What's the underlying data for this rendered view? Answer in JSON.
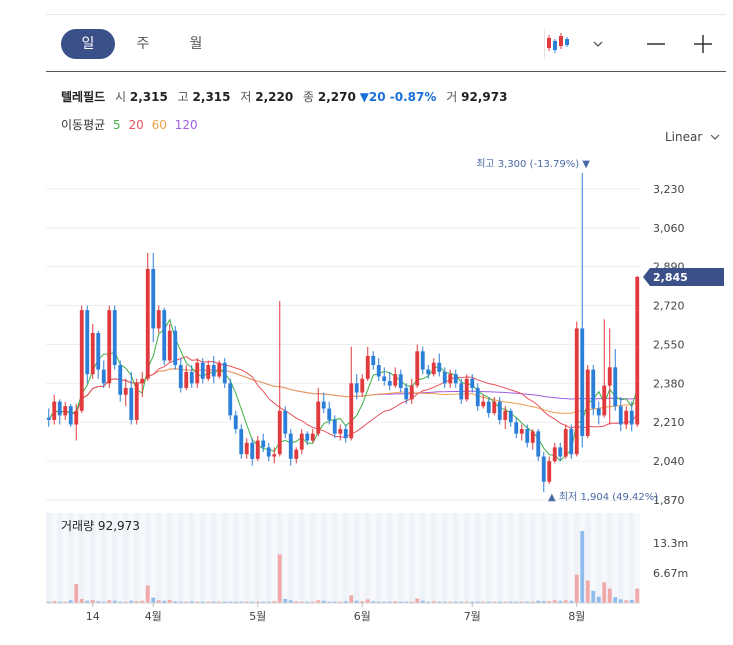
{
  "header": {
    "tabs": [
      {
        "label": "일",
        "active": true
      },
      {
        "label": "주",
        "active": false
      },
      {
        "label": "월",
        "active": false
      }
    ],
    "chart_type_icon": "candlestick-icon",
    "chart_type_dropdown_icon": "chevron-down-icon",
    "zoom_out_icon": "minus-icon",
    "zoom_in_icon": "plus-icon"
  },
  "stock": {
    "name": "텔레필드",
    "open_label": "시",
    "open": "2,315",
    "high_label": "고",
    "high": "2,315",
    "low_label": "저",
    "low": "2,220",
    "close_label": "종",
    "close": "2,270",
    "change": "▼20 -0.87%",
    "volume_label": "거",
    "volume": "92,973"
  },
  "ma": {
    "label": "이동평균",
    "periods": [
      {
        "label": "5",
        "color": "#3cb043"
      },
      {
        "label": "20",
        "color": "#e8545e"
      },
      {
        "label": "60",
        "color": "#f0a050"
      },
      {
        "label": "120",
        "color": "#a05ee0"
      }
    ]
  },
  "scale": {
    "label": "Linear",
    "icon": "chevron-down-icon"
  },
  "colors": {
    "up": "#e0393e",
    "down": "#2b7fd9",
    "accent": "#3b4f88"
  },
  "chart_data": {
    "type": "candlestick",
    "price_axis": {
      "ticks": [
        "3,230",
        "3,060",
        "2,890",
        "2,720",
        "2,550",
        "2,380",
        "2,210",
        "2,040",
        "1,870"
      ],
      "range": [
        1870,
        3400
      ]
    },
    "current_price_label": "2,845",
    "high_annotation": "최고 3,300 (-13.79%) ▼",
    "low_annotation": "▲ 최저 1,904 (49.42%)",
    "x_ticks": [
      {
        "label": "14",
        "index": 8
      },
      {
        "label": "4월",
        "index": 19
      },
      {
        "label": "5월",
        "index": 38
      },
      {
        "label": "6월",
        "index": 57
      },
      {
        "label": "7월",
        "index": 77
      },
      {
        "label": "8월",
        "index": 96
      }
    ],
    "volume_title": "거래량 92,973",
    "volume_axis": {
      "ticks": [
        "13.3m",
        "6.67m"
      ],
      "range": [
        0,
        20000000
      ]
    },
    "ohlc": [
      [
        2230,
        2270,
        2190,
        2220
      ],
      [
        2220,
        2330,
        2200,
        2300
      ],
      [
        2300,
        2310,
        2200,
        2240
      ],
      [
        2240,
        2300,
        2220,
        2280
      ],
      [
        2280,
        2290,
        2190,
        2200
      ],
      [
        2200,
        2290,
        2130,
        2260
      ],
      [
        2260,
        2720,
        2250,
        2700
      ],
      [
        2700,
        2720,
        2380,
        2420
      ],
      [
        2420,
        2640,
        2400,
        2600
      ],
      [
        2600,
        2610,
        2400,
        2440
      ],
      [
        2440,
        2480,
        2360,
        2380
      ],
      [
        2380,
        2720,
        2360,
        2700
      ],
      [
        2700,
        2720,
        2440,
        2460
      ],
      [
        2460,
        2480,
        2300,
        2330
      ],
      [
        2330,
        2400,
        2280,
        2360
      ],
      [
        2360,
        2430,
        2200,
        2220
      ],
      [
        2220,
        2400,
        2200,
        2380
      ],
      [
        2380,
        2430,
        2320,
        2400
      ],
      [
        2400,
        2950,
        2390,
        2880
      ],
      [
        2880,
        2950,
        2560,
        2620
      ],
      [
        2620,
        2720,
        2600,
        2700
      ],
      [
        2700,
        2710,
        2460,
        2480
      ],
      [
        2480,
        2640,
        2470,
        2610
      ],
      [
        2610,
        2630,
        2440,
        2460
      ],
      [
        2460,
        2490,
        2340,
        2360
      ],
      [
        2360,
        2460,
        2350,
        2430
      ],
      [
        2430,
        2460,
        2360,
        2380
      ],
      [
        2380,
        2490,
        2360,
        2470
      ],
      [
        2470,
        2490,
        2380,
        2400
      ],
      [
        2400,
        2480,
        2390,
        2460
      ],
      [
        2460,
        2500,
        2380,
        2410
      ],
      [
        2410,
        2480,
        2400,
        2470
      ],
      [
        2470,
        2490,
        2360,
        2380
      ],
      [
        2380,
        2400,
        2220,
        2240
      ],
      [
        2240,
        2260,
        2160,
        2180
      ],
      [
        2180,
        2200,
        2050,
        2070
      ],
      [
        2070,
        2140,
        2050,
        2120
      ],
      [
        2120,
        2140,
        2020,
        2050
      ],
      [
        2050,
        2150,
        2040,
        2130
      ],
      [
        2130,
        2160,
        2080,
        2100
      ],
      [
        2100,
        2120,
        2040,
        2060
      ],
      [
        2060,
        2100,
        2030,
        2070
      ],
      [
        2070,
        2740,
        2060,
        2260
      ],
      [
        2260,
        2280,
        2140,
        2160
      ],
      [
        2160,
        2180,
        2020,
        2050
      ],
      [
        2050,
        2100,
        2030,
        2090
      ],
      [
        2090,
        2180,
        2070,
        2160
      ],
      [
        2160,
        2170,
        2110,
        2130
      ],
      [
        2130,
        2180,
        2120,
        2160
      ],
      [
        2160,
        2360,
        2150,
        2300
      ],
      [
        2300,
        2340,
        2250,
        2270
      ],
      [
        2270,
        2300,
        2200,
        2220
      ],
      [
        2220,
        2240,
        2140,
        2160
      ],
      [
        2160,
        2200,
        2130,
        2180
      ],
      [
        2180,
        2200,
        2120,
        2140
      ],
      [
        2140,
        2540,
        2130,
        2380
      ],
      [
        2380,
        2420,
        2310,
        2340
      ],
      [
        2340,
        2420,
        2320,
        2400
      ],
      [
        2400,
        2540,
        2390,
        2500
      ],
      [
        2500,
        2520,
        2440,
        2460
      ],
      [
        2460,
        2490,
        2390,
        2410
      ],
      [
        2410,
        2450,
        2370,
        2390
      ],
      [
        2390,
        2430,
        2350,
        2370
      ],
      [
        2370,
        2450,
        2360,
        2420
      ],
      [
        2420,
        2440,
        2340,
        2360
      ],
      [
        2360,
        2380,
        2290,
        2310
      ],
      [
        2310,
        2400,
        2290,
        2370
      ],
      [
        2370,
        2550,
        2360,
        2520
      ],
      [
        2520,
        2540,
        2420,
        2440
      ],
      [
        2440,
        2460,
        2400,
        2420
      ],
      [
        2420,
        2490,
        2410,
        2470
      ],
      [
        2470,
        2510,
        2410,
        2430
      ],
      [
        2430,
        2450,
        2360,
        2380
      ],
      [
        2380,
        2440,
        2360,
        2420
      ],
      [
        2420,
        2440,
        2360,
        2380
      ],
      [
        2380,
        2400,
        2290,
        2310
      ],
      [
        2310,
        2420,
        2300,
        2400
      ],
      [
        2400,
        2420,
        2340,
        2360
      ],
      [
        2360,
        2380,
        2260,
        2280
      ],
      [
        2280,
        2330,
        2270,
        2300
      ],
      [
        2300,
        2320,
        2230,
        2250
      ],
      [
        2250,
        2320,
        2240,
        2300
      ],
      [
        2300,
        2320,
        2200,
        2220
      ],
      [
        2220,
        2280,
        2180,
        2260
      ],
      [
        2260,
        2270,
        2190,
        2210
      ],
      [
        2210,
        2230,
        2140,
        2160
      ],
      [
        2160,
        2200,
        2130,
        2180
      ],
      [
        2180,
        2200,
        2100,
        2120
      ],
      [
        2120,
        2180,
        2090,
        2170
      ],
      [
        2170,
        2180,
        2040,
        2060
      ],
      [
        2060,
        2080,
        1904,
        1950
      ],
      [
        1950,
        2060,
        1940,
        2040
      ],
      [
        2040,
        2120,
        2030,
        2100
      ],
      [
        2100,
        2120,
        2040,
        2060
      ],
      [
        2060,
        2200,
        2050,
        2180
      ],
      [
        2180,
        2200,
        2050,
        2070
      ],
      [
        2070,
        2650,
        2060,
        2620
      ],
      [
        2620,
        3300,
        2100,
        2150
      ],
      [
        2150,
        2460,
        2140,
        2440
      ],
      [
        2440,
        2460,
        2240,
        2270
      ],
      [
        2270,
        2300,
        2200,
        2240
      ],
      [
        2240,
        2660,
        2230,
        2370
      ],
      [
        2370,
        2620,
        2200,
        2450
      ],
      [
        2450,
        2530,
        2260,
        2280
      ],
      [
        2280,
        2320,
        2170,
        2200
      ],
      [
        2200,
        2280,
        2180,
        2260
      ],
      [
        2260,
        2300,
        2170,
        2200
      ],
      [
        2200,
        2850,
        2190,
        2845
      ]
    ],
    "volume": [
      300000,
      400000,
      300000,
      300000,
      600000,
      4200000,
      900000,
      500000,
      700000,
      400000,
      300000,
      600000,
      500000,
      300000,
      300000,
      500000,
      400000,
      500000,
      3900000,
      1200000,
      600000,
      500000,
      700000,
      400000,
      300000,
      300000,
      400000,
      300000,
      300000,
      300000,
      300000,
      300000,
      300000,
      300000,
      300000,
      300000,
      300000,
      300000,
      300000,
      300000,
      300000,
      400000,
      10800000,
      900000,
      600000,
      400000,
      300000,
      300000,
      300000,
      600000,
      500000,
      300000,
      300000,
      300000,
      400000,
      1700000,
      500000,
      400000,
      800000,
      400000,
      300000,
      300000,
      300000,
      400000,
      300000,
      300000,
      300000,
      1000000,
      500000,
      300000,
      400000,
      300000,
      300000,
      300000,
      300000,
      300000,
      300000,
      300000,
      300000,
      300000,
      300000,
      300000,
      300000,
      300000,
      300000,
      300000,
      300000,
      300000,
      300000,
      500000,
      400000,
      400000,
      600000,
      500000,
      600000,
      500000,
      6300000,
      16000000,
      5000000,
      2700000,
      1400000,
      4600000,
      3200000,
      1300000,
      800000,
      600000,
      700000,
      3200000
    ]
  }
}
